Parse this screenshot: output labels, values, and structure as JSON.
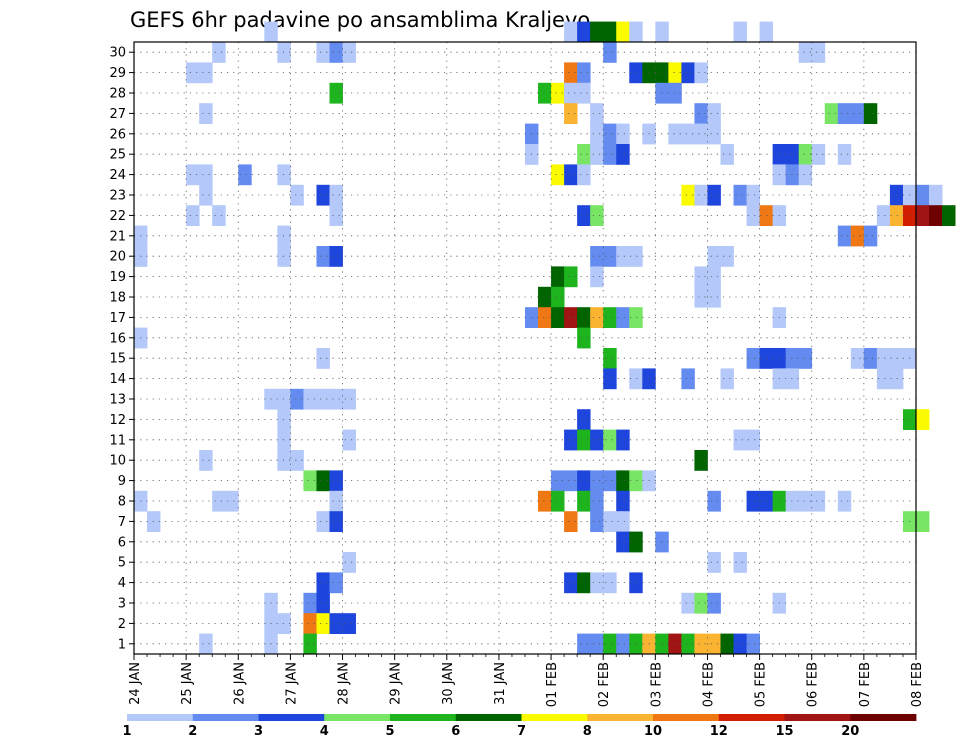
{
  "chart_data": {
    "type": "heatmap",
    "title": "GEFS 6hr padavine po ansamblima Kraljevo",
    "xlabel": "",
    "ylabel": "",
    "x_ticks": [
      "24 JAN",
      "25 JAN",
      "26 JAN",
      "27 JAN",
      "28 JAN",
      "29 JAN",
      "30 JAN",
      "31 JAN",
      "01 FEB",
      "02 FEB",
      "03 FEB",
      "04 FEB",
      "05 FEB",
      "06 FEB",
      "07 FEB",
      "08 FEB"
    ],
    "y_ticks": [
      1,
      2,
      3,
      4,
      5,
      6,
      7,
      8,
      9,
      10,
      11,
      12,
      13,
      14,
      15,
      16,
      17,
      18,
      19,
      20,
      21,
      22,
      23,
      24,
      25,
      26,
      27,
      28,
      29,
      30
    ],
    "x_range": [
      "24 JAN 00Z",
      "08 FEB 00Z"
    ],
    "y_range": [
      0,
      30
    ],
    "time_step_hours": 6,
    "grid": true,
    "colorbar": {
      "position": "bottom",
      "labels": [
        "1",
        "2",
        "3",
        "4",
        "5",
        "6",
        "7",
        "8",
        "10",
        "12",
        "15",
        "20"
      ],
      "colors": [
        "#b4c8fa",
        "#648cf0",
        "#1e46dc",
        "#78e664",
        "#1eb41e",
        "#006400",
        "#fafa00",
        "#fab432",
        "#f07814",
        "#d21e00",
        "#a01414",
        "#6e0000"
      ]
    },
    "cells": [
      [
        30,
        10,
        1
      ],
      [
        30,
        33,
        1
      ],
      [
        30,
        34,
        3
      ],
      [
        30,
        35,
        6
      ],
      [
        30,
        36,
        6
      ],
      [
        30,
        37,
        7
      ],
      [
        30,
        38,
        1
      ],
      [
        30,
        40,
        1
      ],
      [
        30,
        46,
        1
      ],
      [
        30,
        48,
        1
      ],
      [
        29,
        6,
        1
      ],
      [
        29,
        11,
        1
      ],
      [
        29,
        14,
        1
      ],
      [
        29,
        15,
        2
      ],
      [
        29,
        16,
        1
      ],
      [
        29,
        36,
        2
      ],
      [
        29,
        51,
        1
      ],
      [
        29,
        52,
        1
      ],
      [
        28,
        4,
        1
      ],
      [
        28,
        5,
        1
      ],
      [
        28,
        33,
        9
      ],
      [
        28,
        34,
        2
      ],
      [
        28,
        38,
        3
      ],
      [
        28,
        39,
        6
      ],
      [
        28,
        40,
        6
      ],
      [
        28,
        41,
        7
      ],
      [
        28,
        42,
        3
      ],
      [
        28,
        43,
        1
      ],
      [
        27,
        15,
        5
      ],
      [
        27,
        31,
        5
      ],
      [
        27,
        32,
        7
      ],
      [
        27,
        33,
        1
      ],
      [
        27,
        34,
        1
      ],
      [
        27,
        40,
        2
      ],
      [
        27,
        41,
        2
      ],
      [
        26,
        5,
        1
      ],
      [
        26,
        33,
        8
      ],
      [
        26,
        35,
        1
      ],
      [
        26,
        43,
        2
      ],
      [
        26,
        44,
        1
      ],
      [
        26,
        53,
        4
      ],
      [
        26,
        54,
        2
      ],
      [
        26,
        55,
        2
      ],
      [
        26,
        56,
        6
      ],
      [
        25,
        30,
        2
      ],
      [
        25,
        35,
        1
      ],
      [
        25,
        36,
        2
      ],
      [
        25,
        37,
        1
      ],
      [
        25,
        39,
        1
      ],
      [
        25,
        41,
        1
      ],
      [
        25,
        42,
        1
      ],
      [
        25,
        43,
        1
      ],
      [
        25,
        44,
        1
      ],
      [
        24,
        30,
        1
      ],
      [
        24,
        34,
        4
      ],
      [
        24,
        35,
        1
      ],
      [
        24,
        36,
        2
      ],
      [
        24,
        37,
        3
      ],
      [
        24,
        45,
        1
      ],
      [
        24,
        49,
        3
      ],
      [
        24,
        50,
        3
      ],
      [
        24,
        51,
        4
      ],
      [
        24,
        52,
        1
      ],
      [
        24,
        54,
        1
      ],
      [
        23,
        4,
        1
      ],
      [
        23,
        5,
        1
      ],
      [
        23,
        8,
        2
      ],
      [
        23,
        11,
        1
      ],
      [
        23,
        32,
        7
      ],
      [
        23,
        33,
        3
      ],
      [
        23,
        34,
        1
      ],
      [
        23,
        49,
        1
      ],
      [
        23,
        50,
        2
      ],
      [
        23,
        51,
        1
      ],
      [
        22,
        5,
        1
      ],
      [
        22,
        12,
        1
      ],
      [
        22,
        14,
        3
      ],
      [
        22,
        15,
        1
      ],
      [
        22,
        42,
        7
      ],
      [
        22,
        43,
        1
      ],
      [
        22,
        44,
        3
      ],
      [
        22,
        46,
        2
      ],
      [
        22,
        47,
        1
      ],
      [
        22,
        58,
        3
      ],
      [
        22,
        59,
        1
      ],
      [
        22,
        60,
        2
      ],
      [
        22,
        61,
        1
      ],
      [
        21,
        4,
        1
      ],
      [
        21,
        6,
        1
      ],
      [
        21,
        15,
        1
      ],
      [
        21,
        34,
        3
      ],
      [
        21,
        35,
        4
      ],
      [
        21,
        47,
        1
      ],
      [
        21,
        48,
        9
      ],
      [
        21,
        49,
        1
      ],
      [
        21,
        57,
        1
      ],
      [
        21,
        58,
        8
      ],
      [
        21,
        59,
        10
      ],
      [
        21,
        60,
        11
      ],
      [
        21,
        61,
        12
      ],
      [
        21,
        62,
        6
      ],
      [
        20,
        0,
        1
      ],
      [
        20,
        11,
        1
      ],
      [
        20,
        54,
        2
      ],
      [
        20,
        55,
        9
      ],
      [
        20,
        56,
        2
      ],
      [
        19,
        0,
        1
      ],
      [
        19,
        11,
        1
      ],
      [
        19,
        14,
        2
      ],
      [
        19,
        15,
        3
      ],
      [
        19,
        35,
        2
      ],
      [
        19,
        36,
        2
      ],
      [
        19,
        37,
        1
      ],
      [
        19,
        38,
        1
      ],
      [
        19,
        44,
        1
      ],
      [
        19,
        45,
        1
      ],
      [
        18,
        32,
        6
      ],
      [
        18,
        33,
        5
      ],
      [
        18,
        35,
        1
      ],
      [
        18,
        43,
        1
      ],
      [
        18,
        44,
        1
      ],
      [
        17,
        31,
        6
      ],
      [
        17,
        32,
        5
      ],
      [
        17,
        43,
        1
      ],
      [
        17,
        44,
        1
      ],
      [
        16,
        30,
        2
      ],
      [
        16,
        31,
        9
      ],
      [
        16,
        32,
        6
      ],
      [
        16,
        33,
        11
      ],
      [
        16,
        34,
        6
      ],
      [
        16,
        35,
        8
      ],
      [
        16,
        36,
        5
      ],
      [
        16,
        37,
        2
      ],
      [
        16,
        38,
        4
      ],
      [
        16,
        49,
        1
      ],
      [
        15,
        0,
        1
      ],
      [
        15,
        34,
        5
      ],
      [
        14,
        14,
        1
      ],
      [
        14,
        36,
        5
      ],
      [
        14,
        47,
        2
      ],
      [
        14,
        48,
        3
      ],
      [
        14,
        49,
        3
      ],
      [
        14,
        50,
        2
      ],
      [
        14,
        51,
        2
      ],
      [
        14,
        55,
        1
      ],
      [
        14,
        56,
        2
      ],
      [
        14,
        57,
        1
      ],
      [
        14,
        58,
        1
      ],
      [
        14,
        59,
        1
      ],
      [
        13,
        36,
        3
      ],
      [
        13,
        38,
        1
      ],
      [
        13,
        39,
        3
      ],
      [
        13,
        42,
        2
      ],
      [
        13,
        45,
        1
      ],
      [
        13,
        49,
        1
      ],
      [
        13,
        50,
        1
      ],
      [
        13,
        57,
        1
      ],
      [
        13,
        58,
        1
      ],
      [
        12,
        10,
        1
      ],
      [
        12,
        11,
        1
      ],
      [
        12,
        12,
        2
      ],
      [
        12,
        13,
        1
      ],
      [
        12,
        14,
        1
      ],
      [
        12,
        15,
        1
      ],
      [
        12,
        16,
        1
      ],
      [
        11,
        11,
        1
      ],
      [
        11,
        34,
        3
      ],
      [
        11,
        59,
        5
      ],
      [
        11,
        60,
        7
      ],
      [
        10,
        11,
        1
      ],
      [
        10,
        16,
        1
      ],
      [
        10,
        33,
        3
      ],
      [
        10,
        34,
        5
      ],
      [
        10,
        35,
        3
      ],
      [
        10,
        36,
        4
      ],
      [
        10,
        37,
        3
      ],
      [
        10,
        46,
        1
      ],
      [
        10,
        47,
        1
      ],
      [
        9,
        5,
        1
      ],
      [
        9,
        11,
        1
      ],
      [
        9,
        12,
        1
      ],
      [
        9,
        43,
        6
      ],
      [
        8,
        13,
        4
      ],
      [
        8,
        14,
        6
      ],
      [
        8,
        15,
        3
      ],
      [
        8,
        32,
        2
      ],
      [
        8,
        33,
        2
      ],
      [
        8,
        34,
        3
      ],
      [
        8,
        35,
        2
      ],
      [
        8,
        36,
        2
      ],
      [
        8,
        37,
        6
      ],
      [
        8,
        38,
        4
      ],
      [
        8,
        39,
        1
      ],
      [
        7,
        0,
        1
      ],
      [
        7,
        6,
        1
      ],
      [
        7,
        7,
        1
      ],
      [
        7,
        15,
        1
      ],
      [
        7,
        31,
        9
      ],
      [
        7,
        32,
        5
      ],
      [
        7,
        34,
        5
      ],
      [
        7,
        35,
        2
      ],
      [
        7,
        37,
        3
      ],
      [
        7,
        44,
        2
      ],
      [
        7,
        47,
        3
      ],
      [
        7,
        48,
        3
      ],
      [
        7,
        49,
        5
      ],
      [
        7,
        50,
        1
      ],
      [
        7,
        51,
        1
      ],
      [
        7,
        52,
        1
      ],
      [
        7,
        54,
        1
      ],
      [
        6,
        1,
        1
      ],
      [
        6,
        14,
        1
      ],
      [
        6,
        15,
        3
      ],
      [
        6,
        33,
        9
      ],
      [
        6,
        35,
        2
      ],
      [
        6,
        36,
        1
      ],
      [
        6,
        37,
        1
      ],
      [
        6,
        59,
        4
      ],
      [
        6,
        60,
        4
      ],
      [
        5,
        37,
        3
      ],
      [
        5,
        38,
        6
      ],
      [
        5,
        40,
        2
      ],
      [
        4,
        16,
        1
      ],
      [
        4,
        44,
        1
      ],
      [
        4,
        46,
        1
      ],
      [
        3,
        14,
        3
      ],
      [
        3,
        15,
        2
      ],
      [
        3,
        33,
        3
      ],
      [
        3,
        34,
        6
      ],
      [
        3,
        35,
        1
      ],
      [
        3,
        36,
        1
      ],
      [
        3,
        38,
        3
      ],
      [
        2,
        10,
        1
      ],
      [
        2,
        13,
        2
      ],
      [
        2,
        14,
        3
      ],
      [
        2,
        42,
        1
      ],
      [
        2,
        43,
        4
      ],
      [
        2,
        44,
        2
      ],
      [
        2,
        49,
        1
      ],
      [
        1,
        10,
        1
      ],
      [
        1,
        11,
        1
      ],
      [
        1,
        13,
        9
      ],
      [
        1,
        14,
        7
      ],
      [
        1,
        15,
        3
      ],
      [
        1,
        16,
        3
      ],
      [
        0,
        5,
        1
      ],
      [
        0,
        10,
        1
      ],
      [
        0,
        13,
        5
      ],
      [
        0,
        34,
        2
      ],
      [
        0,
        35,
        2
      ],
      [
        0,
        36,
        5
      ],
      [
        0,
        37,
        2
      ],
      [
        0,
        38,
        5
      ],
      [
        0,
        39,
        8
      ],
      [
        0,
        40,
        5
      ],
      [
        0,
        41,
        11
      ],
      [
        0,
        42,
        5
      ],
      [
        0,
        43,
        8
      ],
      [
        0,
        44,
        8
      ],
      [
        0,
        45,
        6
      ],
      [
        0,
        46,
        3
      ],
      [
        0,
        47,
        2
      ]
    ]
  }
}
